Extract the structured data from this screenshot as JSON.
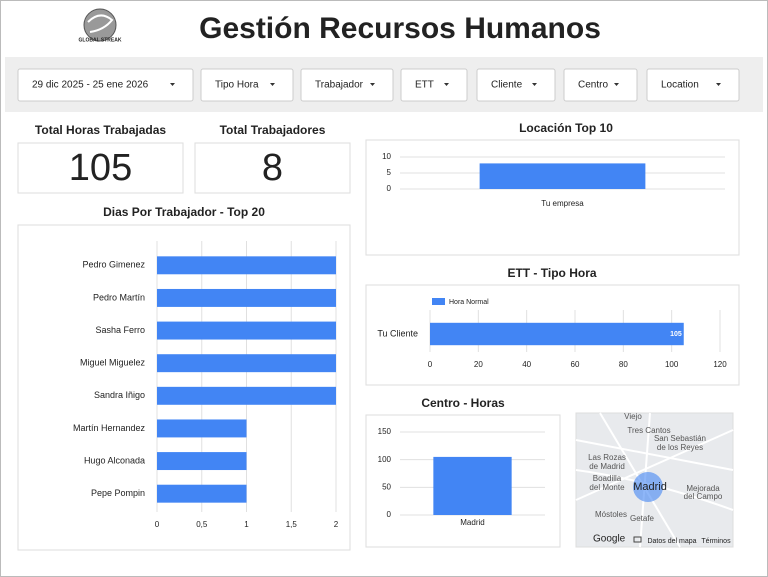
{
  "header": {
    "title": "Gestión Recursos Humanos",
    "logo": "GLOBAL STREAK"
  },
  "filters": [
    "29 dic 2025 - 25 ene 2026",
    "Tipo Hora",
    "Trabajador",
    "ETT",
    "Cliente",
    "Centro",
    "Location"
  ],
  "kpis": [
    {
      "label": "Total Horas Trabajadas",
      "value": 105
    },
    {
      "label": "Total Trabajadores",
      "value": 8
    }
  ],
  "chart_data": [
    {
      "type": "bar",
      "orientation": "vertical",
      "title": "Locación Top 10",
      "categories": [
        "Tu empresa"
      ],
      "values": [
        8
      ],
      "color": "#4285f4",
      "ylim": [
        0,
        10
      ],
      "yticks": [
        0,
        5,
        10
      ],
      "grid": true
    },
    {
      "type": "bar",
      "orientation": "horizontal",
      "title": "Dias Por Trabajador - Top 20",
      "categories": [
        "Pedro Gimenez",
        "Pedro Martín",
        "Sasha Ferro",
        "Miguel Miguelez",
        "Sandra Iñigo",
        "Martín Hernandez",
        "Hugo Alconada",
        "Pepe Pompin"
      ],
      "values": [
        2,
        2,
        2,
        2,
        2,
        1,
        1,
        1
      ],
      "color": "#4285f4",
      "xlim": [
        0,
        2
      ],
      "xticks": [
        0,
        {
          "value": 0.5,
          "label": "0,5"
        },
        1,
        {
          "value": 1.5,
          "label": "1,5"
        },
        2
      ],
      "grid": true
    },
    {
      "type": "bar",
      "orientation": "horizontal",
      "title": "ETT - Tipo Hora",
      "categories": [
        "Tu Cliente"
      ],
      "series": [
        {
          "name": "Hora Normal",
          "color": "#4285f4",
          "values": [
            105
          ]
        }
      ],
      "xlim": [
        0,
        120
      ],
      "xticks": [
        0,
        20,
        40,
        60,
        80,
        100,
        120
      ],
      "grid": true,
      "data_labels": true,
      "legend": "top-left"
    },
    {
      "type": "bar",
      "orientation": "vertical",
      "title": "Centro - Horas",
      "categories": [
        "Madrid"
      ],
      "values": [
        105
      ],
      "color": "#4285f4",
      "ylim": [
        0,
        150
      ],
      "yticks": [
        0,
        50,
        100,
        150
      ],
      "grid": true
    }
  ],
  "map": {
    "labels": [
      "Viejo",
      "Tres Cantos",
      "San Sebastián",
      "de los Reyes",
      "Las Rozas",
      "de Madrid",
      "Boadilla",
      "del Monte",
      "Madrid",
      "Mejorada",
      "del Campo",
      "Móstoles",
      "Getafe"
    ],
    "attribution": [
      "Google",
      "Datos del mapa",
      "Términos"
    ]
  }
}
